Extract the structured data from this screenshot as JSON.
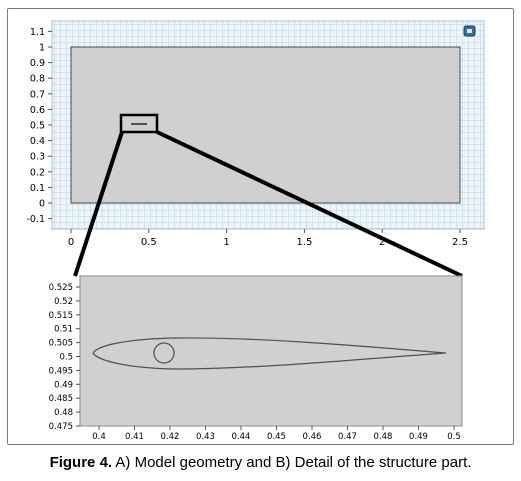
{
  "top_plot": {
    "x_ticks": [
      "0",
      "0.5",
      "1",
      "1.5",
      "2",
      "2.5"
    ],
    "y_ticks": [
      "-0.1",
      "0",
      "0.1",
      "0.2",
      "0.3",
      "0.4",
      "0.5",
      "0.6",
      "0.7",
      "0.8",
      "0.9",
      "1",
      "1.1"
    ]
  },
  "bottom_plot": {
    "x_ticks": [
      "0.4",
      "0.41",
      "0.42",
      "0.43",
      "0.44",
      "0.45",
      "0.46",
      "0.47",
      "0.48",
      "0.49",
      "0.5"
    ],
    "y_ticks": [
      "0.475",
      "0.48",
      "0.485",
      "0.49",
      "0.495",
      "0.5",
      "0.505",
      "0.51",
      "0.515",
      "0.52",
      "0.525"
    ]
  },
  "caption": {
    "label": "Figure 4.",
    "text": " A) Model geometry and B) Detail of the structure part."
  },
  "colors": {
    "domain_fill": "#d0d0d0",
    "plot_background": "#eef6fb",
    "grid": "#c6dfee",
    "outline": "#000000"
  },
  "icons": [
    "window-control-icon"
  ]
}
